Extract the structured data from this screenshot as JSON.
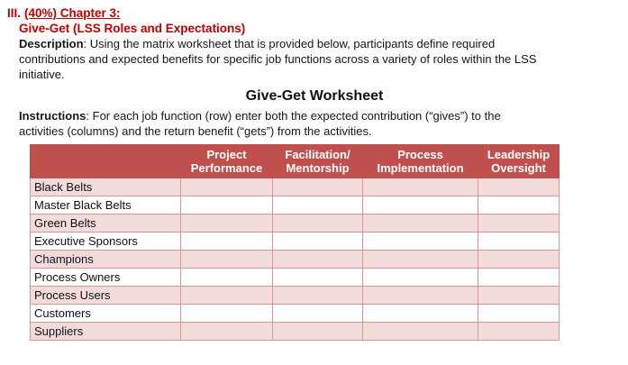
{
  "colors": {
    "heading_red": "#c00000",
    "table_header_bg": "#c0504d",
    "table_header_text": "#ffffff",
    "row_alt_bg": "#f2dcdb",
    "table_border": "#d99694"
  },
  "section": {
    "numeral": "III.",
    "heading": "(40%) Chapter 3:",
    "subheading": "Give-Get (LSS Roles and Expectations)",
    "description": {
      "label": "Description",
      "line1": ": Using the matrix worksheet that is provided below, participants define required",
      "line2": "contributions and expected benefits for specific job functions across a variety of roles within the LSS",
      "line3": "initiative."
    }
  },
  "worksheet": {
    "title": "Give-Get Worksheet",
    "instructions": {
      "label": "Instructions",
      "line1": ": For each job function (row) enter both the expected contribution (“gives”) to the",
      "line2": "activities (columns) and the return benefit (“gets”) from the activities."
    },
    "table": {
      "columns": [
        {
          "line1": "Project",
          "line2": "Performance"
        },
        {
          "line1": "Facilitation/",
          "line2": "Mentorship"
        },
        {
          "line1": "Process",
          "line2": "Implementation"
        },
        {
          "line1": "Leadership",
          "line2": "Oversight"
        }
      ],
      "rows": [
        "Black Belts",
        "Master Black Belts",
        "Green Belts",
        "Executive Sponsors",
        "Champions",
        "Process Owners",
        "Process Users",
        "Customers",
        "Suppliers"
      ]
    }
  }
}
